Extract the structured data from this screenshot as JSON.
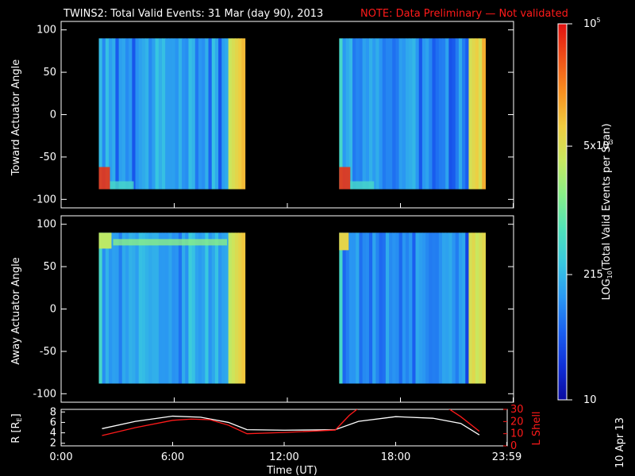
{
  "header": {
    "title": "TWINS2: Total Valid Events: 31 Mar (day  90), 2013",
    "note": "NOTE: Data Preliminary — Not validated"
  },
  "side_date": "10 Apr 13",
  "colorbar": {
    "label_log": "LOG",
    "label_sub": "10",
    "label_rest": "(Total Valid Events per Scan)",
    "ticks": [
      "10",
      "215",
      "5x10",
      "10"
    ],
    "tick_sup": [
      "",
      "",
      "3",
      "5"
    ],
    "min": 10,
    "max": 100000,
    "scale": "log",
    "colors": [
      "#0a0aa0",
      "#1030d8",
      "#1a60f0",
      "#2a98f2",
      "#38c8e0",
      "#50e2b8",
      "#88ee88",
      "#c8e860",
      "#f0cc40",
      "#f89020",
      "#f05018",
      "#e01010"
    ]
  },
  "chart_data": [
    {
      "type": "heatmap",
      "ylabel": "Toward Actuator Angle",
      "y_ticks": [
        "100",
        "50",
        "0",
        "-50",
        "-100"
      ],
      "ylim": [
        -110,
        110
      ],
      "xlim": [
        0,
        24
      ],
      "blocks": [
        {
          "x_start": 2.0,
          "x_end": 9.75,
          "y_start": -88,
          "y_end": 90,
          "level": 0.3,
          "right_edge_level": 0.78,
          "corner_level": 0.95
        },
        {
          "x_start": 14.75,
          "x_end": 22.5,
          "y_start": -88,
          "y_end": 90,
          "level": 0.28,
          "right_edge_level": 0.8,
          "corner_level": 0.95
        }
      ]
    },
    {
      "type": "heatmap",
      "ylabel": "Away Actuator Angle",
      "y_ticks": [
        "100",
        "50",
        "0",
        "-50",
        "-100"
      ],
      "ylim": [
        -110,
        110
      ],
      "xlim": [
        0,
        24
      ],
      "blocks": [
        {
          "x_start": 2.0,
          "x_end": 9.75,
          "y_start": -88,
          "y_end": 90,
          "level": 0.32,
          "right_edge_level": 0.76,
          "top_band_level": 0.55
        },
        {
          "x_start": 14.75,
          "x_end": 22.5,
          "y_start": -88,
          "y_end": 90,
          "level": 0.25,
          "right_edge_level": 0.8,
          "top_corner_level": 0.7
        }
      ]
    },
    {
      "type": "line",
      "ylabel": "R [R",
      "ylabel_sub": "E",
      "ylabel_close": "]",
      "y_ticks": [
        "8",
        "6",
        "4",
        "2"
      ],
      "ylim": [
        1.5,
        8.5
      ],
      "y2label": "L Shell",
      "y2_ticks": [
        "30",
        "20",
        "10",
        "0"
      ],
      "y2lim": [
        0,
        30
      ],
      "x_ticks": [
        "0:00",
        "6:00",
        "12:00",
        "18:00",
        "23:59"
      ],
      "x_tick_values": [
        0,
        6,
        12,
        18,
        23.98
      ],
      "xlabel": "Time (UT)",
      "series": [
        {
          "color": "#ffffff",
          "axis": "left",
          "x": [
            2.2,
            4.0,
            6.0,
            7.5,
            9.0,
            10.0,
            12.0,
            14.75,
            16.0,
            18.0,
            20.0,
            21.5,
            22.5
          ],
          "y": [
            4.8,
            6.2,
            7.2,
            7.0,
            6.0,
            4.6,
            4.5,
            4.6,
            6.2,
            7.1,
            6.8,
            5.8,
            3.6
          ]
        },
        {
          "color": "#ff1a1a",
          "axis": "right",
          "x": [
            2.2,
            4.0,
            6.0,
            7.0,
            8.0,
            9.0,
            10.0,
            12.0,
            14.75,
            15.5,
            16.0,
            20.8,
            21.5,
            22.5
          ],
          "y": [
            8.5,
            15.0,
            21.0,
            22.0,
            21.5,
            17.0,
            10.0,
            11.0,
            13.0,
            25.0,
            31.0,
            31.0,
            24.0,
            12.0
          ]
        }
      ]
    }
  ]
}
